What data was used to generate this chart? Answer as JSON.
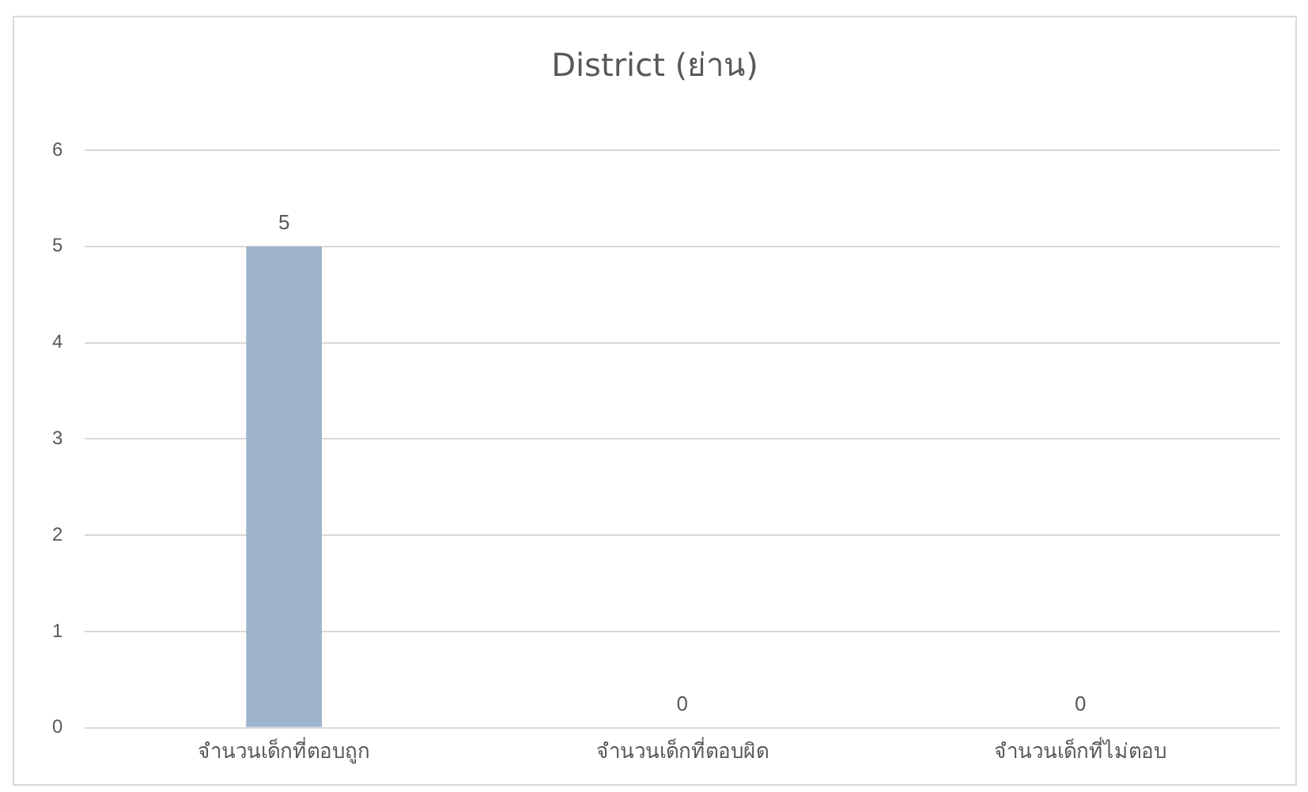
{
  "chart_data": {
    "type": "bar",
    "title": "District (ย่าน)",
    "categories": [
      "จำนวนเด็กที่ตอบถูก",
      "จำนวนเด็กที่ตอบผิด",
      "จำนวนเด็กที่ไม่ตอบ"
    ],
    "values": [
      5,
      0,
      0
    ],
    "color": "#9db4cc",
    "ylim": [
      0,
      6
    ],
    "yticks": [
      0,
      1,
      2,
      3,
      4,
      5,
      6
    ],
    "grid": "y",
    "data_labels": true
  }
}
